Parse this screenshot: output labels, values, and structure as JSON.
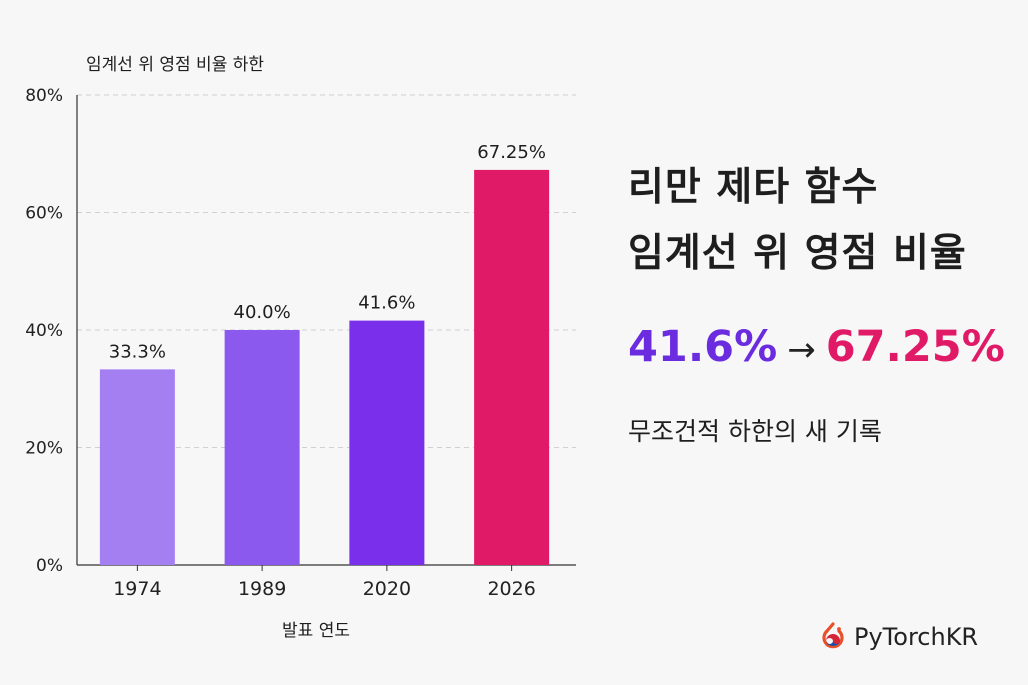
{
  "chart_data": {
    "type": "bar",
    "title": "임계선 위 영점 비율 하한",
    "xlabel": "발표 연도",
    "ylabel": "",
    "categories": [
      "1974",
      "1989",
      "2020",
      "2026"
    ],
    "values": [
      33.3,
      40.0,
      41.6,
      67.25
    ],
    "value_labels": [
      "33.3%",
      "40.0%",
      "41.6%",
      "67.25%"
    ],
    "bar_colors": [
      "#a47ff2",
      "#8b59ee",
      "#7a30ea",
      "#e01a66"
    ],
    "ylim": [
      0,
      80
    ],
    "yticks": [
      0,
      20,
      40,
      60,
      80
    ],
    "ytick_labels": [
      "0%",
      "20%",
      "40%",
      "60%",
      "80%"
    ],
    "grid": true
  },
  "panel": {
    "title_line1": "리만 제타 함수",
    "title_line2": "임계선 위 영점 비율",
    "from_value": "41.6%",
    "arrow": "→",
    "to_value": "67.25%",
    "caption": "무조건적 하한의 새 기록"
  },
  "brand": {
    "name": "PyTorchKR",
    "icon": "pytorchkr-logo-icon"
  },
  "colors": {
    "accent_purple": "#6b2ce0",
    "accent_pink": "#e01a66"
  }
}
